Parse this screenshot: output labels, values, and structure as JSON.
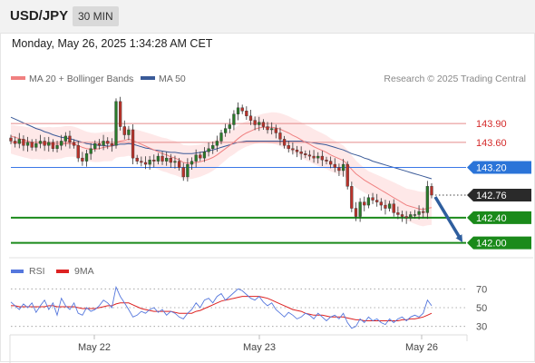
{
  "header": {
    "pair": "USD/JPY",
    "timeframe": "30 MIN"
  },
  "datetime": "Monday, May 26, 2025 1:34:28 AM CET",
  "legend": {
    "ma20": "MA 20 + Bollinger Bands",
    "ma50": "MA 50",
    "copyright": "Research © 2025 Trading Central"
  },
  "rsi_legend": {
    "rsi": "RSI",
    "ma9": "9MA"
  },
  "colors": {
    "ma20": "#f08080",
    "ma50": "#3a5a98",
    "bands": "#fde0e0",
    "bull": "#2a7a2a",
    "bear": "#b8322a",
    "support": "#1a8a1a",
    "pivot": "#3b78e7",
    "arrow": "#2e5e9e",
    "rsi": "#5577dd",
    "rsi_ma": "#dd2222"
  },
  "chart_data": [
    {
      "type": "candlestick",
      "x_tick_labels": [
        "May 22",
        "May 23",
        "May 26"
      ],
      "ylim": [
        141.85,
        144.45
      ],
      "levels": [
        {
          "label": "143.90",
          "value": 143.9,
          "style": "resistance"
        },
        {
          "label": "143.60",
          "value": 143.6,
          "style": "resistance"
        },
        {
          "label": "143.20",
          "value": 143.2,
          "style": "pivot"
        },
        {
          "label": "142.76",
          "value": 142.76,
          "style": "last"
        },
        {
          "label": "142.40",
          "value": 142.4,
          "style": "support"
        },
        {
          "label": "142.00",
          "value": 142.0,
          "style": "support"
        }
      ],
      "forecast": {
        "from": 142.76,
        "to": 142.0,
        "direction": "down"
      },
      "closes": [
        143.62,
        143.58,
        143.65,
        143.55,
        143.6,
        143.52,
        143.58,
        143.62,
        143.55,
        143.6,
        143.5,
        143.55,
        143.62,
        143.7,
        143.6,
        143.55,
        143.35,
        143.3,
        143.42,
        143.5,
        143.58,
        143.55,
        143.62,
        143.58,
        143.55,
        144.25,
        143.85,
        143.72,
        143.8,
        143.35,
        143.3,
        143.28,
        143.25,
        143.32,
        143.3,
        143.38,
        143.3,
        143.35,
        143.28,
        143.3,
        143.2,
        143.05,
        143.25,
        143.3,
        143.4,
        143.35,
        143.45,
        143.5,
        143.55,
        143.62,
        143.75,
        143.82,
        143.88,
        144.05,
        144.15,
        144.1,
        144.02,
        143.95,
        143.88,
        143.92,
        143.85,
        143.8,
        143.82,
        143.75,
        143.65,
        143.55,
        143.5,
        143.48,
        143.45,
        143.42,
        143.4,
        143.38,
        143.35,
        143.38,
        143.32,
        143.3,
        143.25,
        143.2,
        143.15,
        143.25,
        142.9,
        142.55,
        142.42,
        142.65,
        142.6,
        142.72,
        142.68,
        142.65,
        142.6,
        142.55,
        142.62,
        142.48,
        142.45,
        142.42,
        142.4,
        142.45,
        142.45,
        142.5,
        142.48,
        142.9,
        142.76
      ],
      "ma20": [
        143.7,
        143.68,
        143.66,
        143.64,
        143.62,
        143.6,
        143.6,
        143.59,
        143.58,
        143.58,
        143.57,
        143.57,
        143.57,
        143.58,
        143.58,
        143.57,
        143.55,
        143.52,
        143.5,
        143.49,
        143.49,
        143.5,
        143.52,
        143.53,
        143.54,
        143.6,
        143.62,
        143.63,
        143.65,
        143.63,
        143.6,
        143.57,
        143.54,
        143.51,
        143.48,
        143.45,
        143.42,
        143.4,
        143.37,
        143.35,
        143.32,
        143.28,
        143.27,
        143.27,
        143.28,
        143.29,
        143.31,
        143.33,
        143.36,
        143.4,
        143.45,
        143.5,
        143.55,
        143.6,
        143.66,
        143.71,
        143.75,
        143.78,
        143.81,
        143.83,
        143.84,
        143.84,
        143.84,
        143.83,
        143.81,
        143.78,
        143.75,
        143.71,
        143.68,
        143.64,
        143.6,
        143.57,
        143.53,
        143.5,
        143.47,
        143.44,
        143.4,
        143.37,
        143.34,
        143.31,
        143.25,
        143.17,
        143.1,
        143.05,
        143.0,
        142.96,
        142.92,
        142.88,
        142.84,
        142.8,
        142.76,
        142.72,
        142.68,
        142.64,
        142.6,
        142.58,
        142.56,
        142.54,
        142.53,
        142.55,
        142.56
      ],
      "ma50": [
        144.0,
        143.97,
        143.94,
        143.91,
        143.88,
        143.85,
        143.82,
        143.8,
        143.77,
        143.75,
        143.72,
        143.7,
        143.68,
        143.67,
        143.66,
        143.64,
        143.62,
        143.6,
        143.58,
        143.57,
        143.56,
        143.55,
        143.55,
        143.54,
        143.54,
        143.56,
        143.57,
        143.57,
        143.58,
        143.57,
        143.55,
        143.53,
        143.51,
        143.5,
        143.48,
        143.47,
        143.46,
        143.45,
        143.44,
        143.44,
        143.43,
        143.42,
        143.42,
        143.42,
        143.43,
        143.44,
        143.45,
        143.47,
        143.48,
        143.5,
        143.52,
        143.54,
        143.56,
        143.58,
        143.6,
        143.61,
        143.62,
        143.62,
        143.62,
        143.62,
        143.62,
        143.62,
        143.62,
        143.62,
        143.62,
        143.62,
        143.62,
        143.62,
        143.62,
        143.62,
        143.61,
        143.6,
        143.59,
        143.58,
        143.57,
        143.56,
        143.54,
        143.52,
        143.5,
        143.48,
        143.45,
        143.42,
        143.4,
        143.38,
        143.35,
        143.33,
        143.3,
        143.28,
        143.26,
        143.24,
        143.22,
        143.2,
        143.18,
        143.16,
        143.14,
        143.12,
        143.1,
        143.08,
        143.06,
        143.04,
        143.02
      ]
    },
    {
      "type": "line",
      "y_tick_labels": [
        "70",
        "50",
        "30"
      ],
      "ylim": [
        20,
        80
      ],
      "series": [
        {
          "name": "RSI",
          "values": [
            56,
            52,
            48,
            54,
            50,
            55,
            45,
            52,
            58,
            48,
            55,
            42,
            60,
            52,
            48,
            55,
            44,
            42,
            50,
            46,
            48,
            52,
            58,
            55,
            50,
            72,
            62,
            55,
            48,
            40,
            42,
            46,
            44,
            48,
            50,
            45,
            48,
            42,
            46,
            44,
            40,
            38,
            44,
            48,
            55,
            50,
            58,
            60,
            55,
            62,
            65,
            58,
            62,
            66,
            70,
            68,
            64,
            60,
            58,
            62,
            56,
            52,
            55,
            48,
            44,
            40,
            45,
            42,
            38,
            40,
            44,
            42,
            38,
            44,
            40,
            36,
            40,
            42,
            38,
            44,
            34,
            28,
            30,
            38,
            34,
            40,
            36,
            38,
            34,
            32,
            38,
            34,
            38,
            40,
            36,
            40,
            42,
            40,
            44,
            58,
            52
          ]
        },
        {
          "name": "9MA",
          "values": [
            52,
            52,
            51,
            51,
            51,
            51,
            51,
            51,
            51,
            52,
            52,
            51,
            51,
            51,
            51,
            51,
            50,
            49,
            49,
            49,
            49,
            50,
            51,
            52,
            52,
            54,
            55,
            55,
            55,
            53,
            51,
            49,
            48,
            47,
            46,
            46,
            46,
            46,
            46,
            45,
            44,
            44,
            44,
            44,
            46,
            47,
            49,
            51,
            53,
            55,
            57,
            58,
            59,
            60,
            61,
            62,
            62,
            62,
            62,
            62,
            61,
            60,
            58,
            56,
            54,
            52,
            50,
            48,
            47,
            46,
            44,
            43,
            42,
            42,
            42,
            41,
            40,
            40,
            40,
            40,
            39,
            38,
            37,
            37,
            36,
            36,
            36,
            36,
            36,
            36,
            36,
            36,
            36,
            37,
            37,
            38,
            38,
            39,
            40,
            42,
            44
          ]
        }
      ]
    }
  ]
}
